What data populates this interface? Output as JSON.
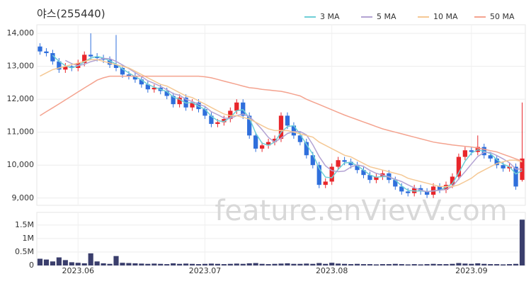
{
  "chart_data": {
    "type": "candlestick",
    "title": "야스(255440)",
    "categories": [
      null,
      null,
      null,
      null,
      null,
      null,
      "2023.06",
      null,
      null,
      null,
      null,
      null,
      null,
      null,
      null,
      null,
      null,
      null,
      null,
      null,
      null,
      null,
      null,
      null,
      null,
      null,
      "2023.07",
      null,
      null,
      null,
      null,
      null,
      null,
      null,
      null,
      null,
      null,
      null,
      null,
      null,
      null,
      null,
      null,
      null,
      null,
      null,
      "2023.08",
      null,
      null,
      null,
      null,
      null,
      null,
      null,
      null,
      null,
      null,
      null,
      null,
      null,
      null,
      null,
      null,
      null,
      null,
      null,
      null,
      null,
      "2023.09",
      null,
      null,
      null,
      null,
      null,
      null,
      null,
      null
    ],
    "open": [
      13600,
      13450,
      13400,
      13150,
      12900,
      13000,
      12950,
      13100,
      13350,
      13300,
      13250,
      13200,
      13050,
      12950,
      12750,
      12700,
      12600,
      12450,
      12300,
      12350,
      12250,
      12100,
      11850,
      12050,
      11750,
      11900,
      11700,
      11500,
      11250,
      11300,
      11400,
      11650,
      11900,
      11500,
      10900,
      10500,
      10600,
      10700,
      10800,
      11500,
      11200,
      10900,
      10700,
      10300,
      10000,
      9400,
      9500,
      9950,
      10150,
      10100,
      10000,
      9850,
      9700,
      9550,
      9650,
      9750,
      9550,
      9350,
      9200,
      9150,
      9300,
      9200,
      9100,
      9350,
      9250,
      9400,
      9650,
      10250,
      10450,
      10400,
      10550,
      10300,
      10200,
      10000,
      9900,
      9950,
      9550
    ],
    "high": [
      13700,
      13550,
      13500,
      13250,
      13100,
      13100,
      13200,
      13450,
      14000,
      13400,
      13350,
      13300,
      13950,
      13050,
      12850,
      12800,
      12700,
      12550,
      12450,
      12450,
      12350,
      12200,
      12150,
      12150,
      12000,
      12000,
      11800,
      11600,
      11400,
      11500,
      11750,
      12000,
      12000,
      11600,
      11000,
      10700,
      10800,
      10900,
      11600,
      11600,
      11300,
      11000,
      10800,
      10400,
      10100,
      9600,
      10050,
      10250,
      10250,
      10200,
      10100,
      9950,
      9800,
      9750,
      9850,
      9850,
      9650,
      9450,
      9300,
      9400,
      9400,
      9300,
      9450,
      9450,
      9500,
      9750,
      10350,
      10550,
      10550,
      10900,
      10650,
      10400,
      10300,
      10100,
      10050,
      10050,
      11900
    ],
    "low": [
      13350,
      13300,
      13050,
      12800,
      12800,
      12850,
      12850,
      13000,
      13200,
      13150,
      13100,
      12950,
      12850,
      12650,
      12600,
      12500,
      12350,
      12200,
      12200,
      12150,
      12000,
      11750,
      11750,
      11650,
      11650,
      11600,
      11400,
      11150,
      11150,
      11200,
      11300,
      11550,
      11400,
      10800,
      10400,
      10400,
      10500,
      10600,
      10700,
      11100,
      10800,
      10600,
      10200,
      9900,
      9300,
      9300,
      9400,
      9850,
      10000,
      9900,
      9750,
      9600,
      9450,
      9450,
      9550,
      9450,
      9250,
      9100,
      9050,
      9050,
      9100,
      9000,
      9000,
      9150,
      9150,
      9300,
      9550,
      10150,
      10300,
      10300,
      10200,
      10100,
      9900,
      9800,
      9800,
      9250,
      9500
    ],
    "close": [
      13450,
      13400,
      13150,
      12900,
      13000,
      12950,
      13100,
      13350,
      13300,
      13250,
      13200,
      13050,
      12950,
      12750,
      12700,
      12600,
      12450,
      12300,
      12350,
      12250,
      12100,
      11850,
      12050,
      11750,
      11900,
      11700,
      11500,
      11250,
      11300,
      11400,
      11650,
      11900,
      11500,
      10900,
      10500,
      10600,
      10700,
      10800,
      11500,
      11200,
      10900,
      10700,
      10300,
      10000,
      9400,
      9500,
      9950,
      10150,
      10100,
      10000,
      9850,
      9700,
      9550,
      9650,
      9750,
      9550,
      9350,
      9200,
      9150,
      9300,
      9200,
      9100,
      9350,
      9250,
      9400,
      9650,
      10250,
      10450,
      10400,
      10550,
      10300,
      10200,
      10000,
      9900,
      9950,
      9350,
      10200
    ],
    "up_color": "#e8262b",
    "down_color": "#2f6fdc",
    "series": [
      {
        "name": "3 MA",
        "color": "#6fcfd6",
        "values": [
          null,
          null,
          13333,
          13150,
          13017,
          12950,
          13017,
          13133,
          13250,
          13300,
          13250,
          13167,
          13067,
          12917,
          12800,
          12683,
          12583,
          12450,
          12367,
          12300,
          12233,
          12067,
          12000,
          11883,
          11900,
          11783,
          11700,
          11483,
          11350,
          11317,
          11450,
          11650,
          11683,
          11433,
          10967,
          10667,
          10600,
          10700,
          11000,
          11167,
          11200,
          10933,
          10633,
          10333,
          9900,
          9633,
          9617,
          9867,
          10067,
          10083,
          9983,
          9850,
          9700,
          9633,
          9650,
          9650,
          9550,
          9367,
          9233,
          9217,
          9217,
          9200,
          9217,
          9233,
          9333,
          9433,
          9767,
          10117,
          10367,
          10467,
          10417,
          10350,
          10167,
          10033,
          9950,
          9733,
          9833
        ]
      },
      {
        "name": "5 MA",
        "color": "#b3a3d3",
        "values": [
          null,
          null,
          null,
          null,
          13180,
          13080,
          13020,
          13060,
          13140,
          13190,
          13240,
          13230,
          13150,
          13040,
          12930,
          12810,
          12690,
          12560,
          12480,
          12390,
          12290,
          12170,
          12120,
          12000,
          11930,
          11850,
          11780,
          11620,
          11530,
          11430,
          11420,
          11500,
          11550,
          11470,
          11290,
          11080,
          10840,
          10700,
          10820,
          10960,
          11020,
          11020,
          10920,
          10620,
          10260,
          9980,
          9830,
          9800,
          9820,
          9940,
          10010,
          9960,
          9840,
          9750,
          9700,
          9640,
          9570,
          9500,
          9400,
          9310,
          9240,
          9190,
          9220,
          9240,
          9260,
          9350,
          9580,
          9800,
          10030,
          10260,
          10390,
          10380,
          10290,
          10190,
          10070,
          9880,
          9880
        ]
      },
      {
        "name": "10 MA",
        "color": "#f5c894",
        "values": [
          12700,
          12800,
          12900,
          12950,
          13000,
          13050,
          13100,
          13150,
          13200,
          13200,
          13150,
          13100,
          13050,
          13000,
          12950,
          12850,
          12750,
          12650,
          12550,
          12450,
          12400,
          12300,
          12200,
          12100,
          12050,
          11950,
          11850,
          11750,
          11650,
          11550,
          11500,
          11500,
          11450,
          11400,
          11300,
          11200,
          11100,
          11050,
          11050,
          11050,
          11000,
          10950,
          10900,
          10850,
          10700,
          10600,
          10500,
          10400,
          10300,
          10250,
          10150,
          10050,
          9950,
          9900,
          9850,
          9800,
          9750,
          9700,
          9600,
          9550,
          9500,
          9450,
          9400,
          9350,
          9350,
          9350,
          9400,
          9500,
          9600,
          9750,
          9850,
          9950,
          10050,
          10100,
          10150,
          10150,
          10100
        ]
      },
      {
        "name": "50 MA",
        "color": "#f4a38f",
        "values": [
          11500,
          11620,
          11740,
          11860,
          11980,
          12100,
          12220,
          12340,
          12460,
          12580,
          12650,
          12700,
          12700,
          12700,
          12700,
          12700,
          12700,
          12700,
          12700,
          12700,
          12700,
          12700,
          12700,
          12700,
          12700,
          12700,
          12680,
          12650,
          12600,
          12550,
          12500,
          12450,
          12400,
          12350,
          12330,
          12300,
          12280,
          12260,
          12240,
          12200,
          12150,
          12100,
          12000,
          11920,
          11840,
          11760,
          11680,
          11600,
          11520,
          11450,
          11380,
          11310,
          11240,
          11170,
          11100,
          11050,
          11000,
          10950,
          10900,
          10850,
          10800,
          10750,
          10700,
          10670,
          10640,
          10610,
          10590,
          10570,
          10550,
          10520,
          10480,
          10440,
          10400,
          10330,
          10260,
          10190,
          10120
        ]
      }
    ],
    "ylim": [
      8780,
      14260
    ],
    "yticks": [
      {
        "value": 9000,
        "label": "9,000"
      },
      {
        "value": 10000,
        "label": "10,000"
      },
      {
        "value": 11000,
        "label": "11,000"
      },
      {
        "value": 12000,
        "label": "12,000"
      },
      {
        "value": 13000,
        "label": "13,000"
      },
      {
        "value": 14000,
        "label": "14,000"
      }
    ],
    "grid": true,
    "volume": {
      "color": "#3a3e6c",
      "ylim": [
        0,
        1970000
      ],
      "yticks": [
        0,
        {
          "value": 500000,
          "label": "0.5M"
        },
        {
          "value": 1000000,
          "label": "1M"
        },
        {
          "value": 1500000,
          "label": "1.5M"
        }
      ],
      "values": [
        250000,
        220000,
        150000,
        300000,
        200000,
        120000,
        100000,
        80000,
        450000,
        150000,
        80000,
        60000,
        350000,
        100000,
        90000,
        80000,
        70000,
        60000,
        70000,
        60000,
        50000,
        80000,
        60000,
        70000,
        60000,
        50000,
        60000,
        70000,
        60000,
        50000,
        60000,
        70000,
        60000,
        80000,
        90000,
        60000,
        50000,
        60000,
        70000,
        80000,
        60000,
        60000,
        70000,
        60000,
        90000,
        60000,
        100000,
        70000,
        60000,
        50000,
        60000,
        50000,
        50000,
        40000,
        50000,
        50000,
        60000,
        50000,
        40000,
        50000,
        40000,
        50000,
        60000,
        50000,
        50000,
        60000,
        90000,
        70000,
        60000,
        80000,
        60000,
        50000,
        50000,
        40000,
        50000,
        60000,
        1700000
      ]
    },
    "watermark": "feature.enVievV.com"
  }
}
